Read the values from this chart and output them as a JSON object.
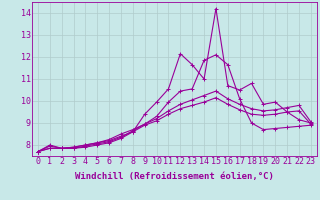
{
  "xlabel": "Windchill (Refroidissement éolien,°C)",
  "xlim": [
    -0.5,
    23.5
  ],
  "ylim": [
    7.5,
    14.5
  ],
  "yticks": [
    8,
    9,
    10,
    11,
    12,
    13,
    14
  ],
  "xticks": [
    0,
    1,
    2,
    3,
    4,
    5,
    6,
    7,
    8,
    9,
    10,
    11,
    12,
    13,
    14,
    15,
    16,
    17,
    18,
    19,
    20,
    21,
    22,
    23
  ],
  "background_color": "#c8e8e8",
  "grid_color": "#b0cccc",
  "line_color": "#990099",
  "lines": [
    [
      7.7,
      8.0,
      7.85,
      7.85,
      7.9,
      8.0,
      8.1,
      8.3,
      8.6,
      9.4,
      9.95,
      10.55,
      12.15,
      11.65,
      11.0,
      14.2,
      10.7,
      10.5,
      10.8,
      9.85,
      9.95,
      9.5,
      9.15,
      9.0
    ],
    [
      7.7,
      7.95,
      7.85,
      7.85,
      7.95,
      8.05,
      8.15,
      8.35,
      8.65,
      8.95,
      9.3,
      9.95,
      10.45,
      10.55,
      11.85,
      12.1,
      11.65,
      10.1,
      9.0,
      8.7,
      8.75,
      8.8,
      8.85,
      8.9
    ],
    [
      7.7,
      7.85,
      7.85,
      7.9,
      8.0,
      8.1,
      8.25,
      8.5,
      8.7,
      8.95,
      9.2,
      9.55,
      9.85,
      10.05,
      10.25,
      10.45,
      10.1,
      9.85,
      9.65,
      9.55,
      9.6,
      9.7,
      9.8,
      9.05
    ],
    [
      7.7,
      7.85,
      7.85,
      7.9,
      8.0,
      8.1,
      8.2,
      8.4,
      8.6,
      8.9,
      9.1,
      9.4,
      9.65,
      9.8,
      9.95,
      10.15,
      9.85,
      9.6,
      9.4,
      9.35,
      9.4,
      9.5,
      9.55,
      8.95
    ]
  ],
  "marker": "+",
  "markersize": 3,
  "linewidth": 0.8,
  "fontsize_tick": 6,
  "fontsize_label": 6.5
}
